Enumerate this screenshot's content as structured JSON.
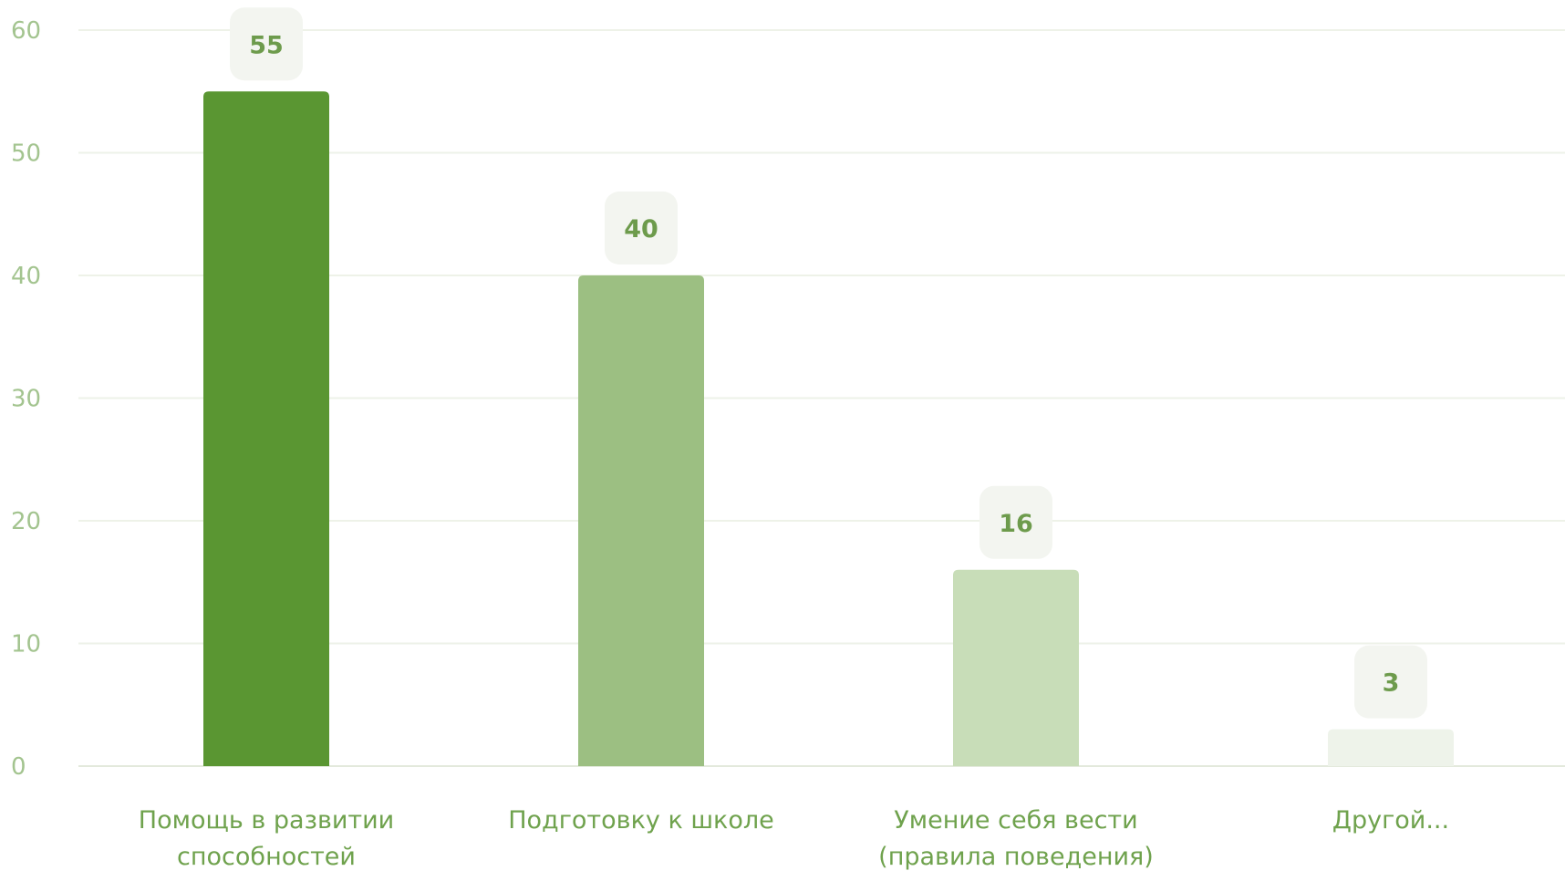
{
  "chart_data": {
    "type": "bar",
    "title": "",
    "xlabel": "",
    "ylabel": "",
    "ylim": [
      0,
      60
    ],
    "y_ticks": [
      0,
      10,
      20,
      30,
      40,
      50,
      60
    ],
    "grid": true,
    "categories": [
      [
        "Помощь в развитии",
        "способностей"
      ],
      [
        "Подготовку к школе"
      ],
      [
        "Умение себя вести",
        "(правила поведения)"
      ],
      [
        "Другой..."
      ]
    ],
    "values": [
      55,
      40,
      16,
      3
    ],
    "value_labels": [
      "55",
      "40",
      "16",
      "3"
    ],
    "colors": [
      "#5a9632",
      "#9cbf82",
      "#c8ddb8",
      "#eef3ea"
    ]
  }
}
